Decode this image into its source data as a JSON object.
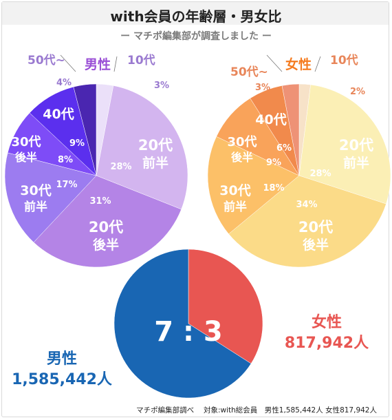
{
  "title": "with会員の年齢層・男女比",
  "subtitle": "ー マチポ編集部が調査しました ー",
  "footer": "マチポ編集部調べ　 対象:with総会員　男性1,585,442人 女性817,942人",
  "chart_data": [
    {
      "type": "pie",
      "title": "男性",
      "title_color": "#9a4fd6",
      "slices": [
        {
          "label": "10代",
          "value": 3,
          "pct": "3%",
          "color": "#ebe0f9",
          "label_color": "#9a7ad0"
        },
        {
          "label": "20代前半",
          "value": 28,
          "pct": "28%",
          "color": "#d3b5ef",
          "label_color": "#ffffff"
        },
        {
          "label": "20代後半",
          "value": 31,
          "pct": "31%",
          "color": "#b484e6",
          "label_color": "#ffffff"
        },
        {
          "label": "30代前半",
          "value": 17,
          "pct": "17%",
          "color": "#9c7cf0",
          "label_color": "#ffffff"
        },
        {
          "label": "30代後半",
          "value": 8,
          "pct": "8%",
          "color": "#7e4cf7",
          "label_color": "#ffffff"
        },
        {
          "label": "40代",
          "value": 9,
          "pct": "9%",
          "color": "#5b2fee",
          "label_color": "#ffffff"
        },
        {
          "label": "50代~",
          "value": 4,
          "pct": "4%",
          "color": "#4a26b0",
          "label_color": "#9a7ad0"
        }
      ]
    },
    {
      "type": "pie",
      "title": "女性",
      "title_color": "#f57c20",
      "slices": [
        {
          "label": "10代",
          "value": 2,
          "pct": "2%",
          "color": "#f7e2c8",
          "label_color": "#e8865a"
        },
        {
          "label": "20代前半",
          "value": 28,
          "pct": "28%",
          "color": "#fbefb5",
          "label_color": "#ffffff"
        },
        {
          "label": "20代後半",
          "value": 34,
          "pct": "34%",
          "color": "#fbdb88",
          "label_color": "#ffffff"
        },
        {
          "label": "30代前半",
          "value": 18,
          "pct": "18%",
          "color": "#fcc068",
          "label_color": "#ffffff"
        },
        {
          "label": "30代後半",
          "value": 9,
          "pct": "9%",
          "color": "#f9a35a",
          "label_color": "#ffffff"
        },
        {
          "label": "40代",
          "value": 6,
          "pct": "6%",
          "color": "#f18a4c",
          "label_color": "#ffffff"
        },
        {
          "label": "50代~",
          "value": 3,
          "pct": "3%",
          "color": "#ee9276",
          "label_color": "#e8865a"
        }
      ]
    },
    {
      "type": "pie",
      "center_label": "7 : 3",
      "slices": [
        {
          "label": "女性",
          "value_label": "817,942人",
          "value": 817942,
          "color": "#e85652"
        },
        {
          "label": "男性",
          "value_label": "1,585,442人",
          "value": 1585442,
          "color": "#1966b3"
        }
      ]
    }
  ]
}
